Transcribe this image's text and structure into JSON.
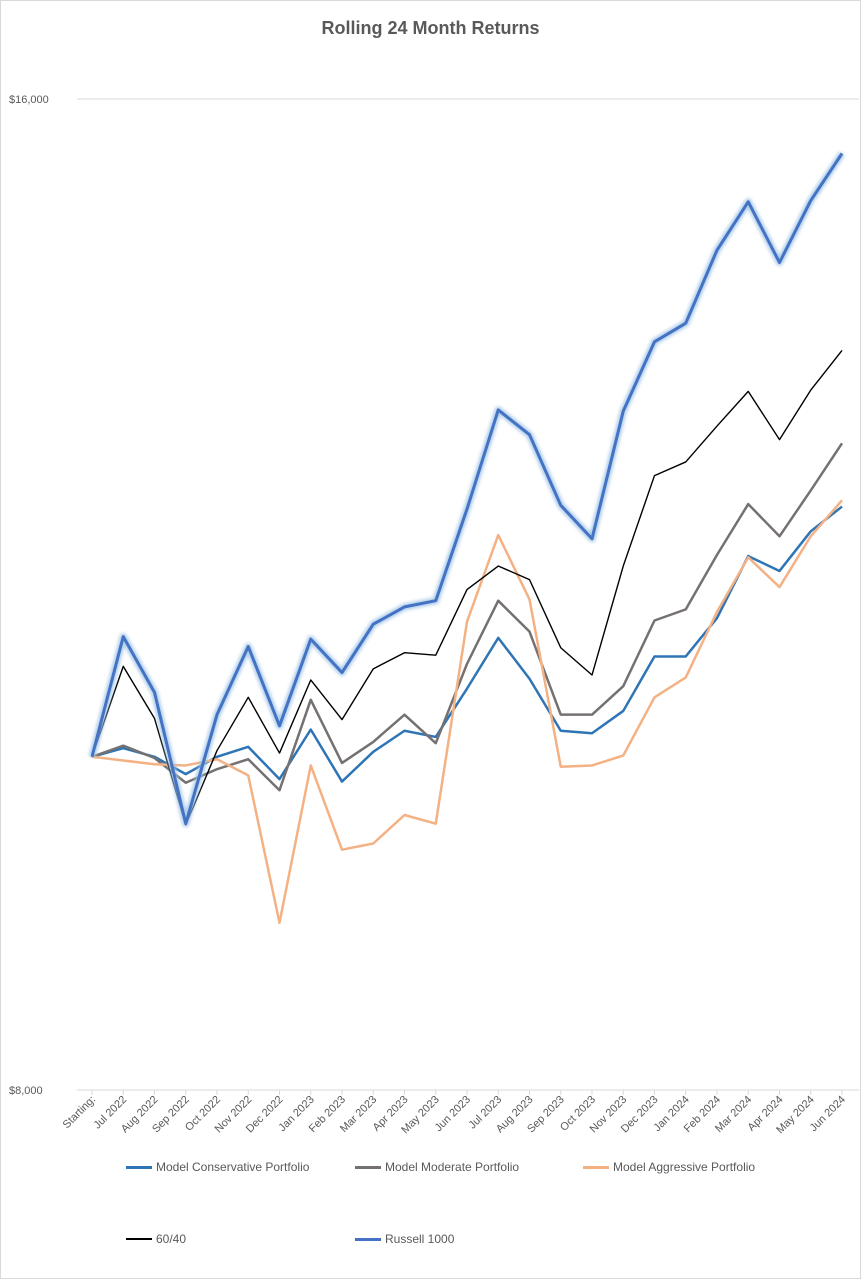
{
  "chart_data": {
    "type": "line",
    "title": "Rolling 24 Month Returns",
    "categories": [
      "Starting:",
      "Jul 2022",
      "Aug 2022",
      "Sep 2022",
      "Oct 2022",
      "Nov 2022",
      "Dec 2022",
      "Jan 2023",
      "Feb 2023",
      "Mar 2023",
      "Apr 2023",
      "May 2023",
      "Jun 2023",
      "Jul 2023",
      "Aug 2023",
      "Sep 2023",
      "Oct 2023",
      "Nov 2023",
      "Dec 2023",
      "Jan 2024",
      "Feb 2024",
      "Mar 2024",
      "Apr 2024",
      "May 2024",
      "Jun 2024"
    ],
    "ylim": [
      8000,
      16000
    ],
    "y_ticks": [
      "$16,000",
      "$8,000"
    ],
    "y_tick_values": [
      16000,
      8000
    ],
    "grid": "horizontal line at top",
    "legend_position": "bottom",
    "series": [
      {
        "name": "Model Conservative Portfolio",
        "color": "#2e75b6",
        "values": [
          10690,
          10760,
          10690,
          10550,
          10690,
          10770,
          10510,
          10910,
          10490,
          10730,
          10900,
          10850,
          11240,
          11650,
          11320,
          10900,
          10880,
          11060,
          11500,
          11500,
          11810,
          12310,
          12190,
          12510,
          12710
        ]
      },
      {
        "name": "Model Moderate Portfolio",
        "color": "#767171",
        "values": [
          10690,
          10780,
          10680,
          10480,
          10590,
          10670,
          10420,
          11150,
          10640,
          10810,
          11030,
          10800,
          11440,
          11950,
          11700,
          11030,
          11030,
          11260,
          11790,
          11880,
          12320,
          12730,
          12470,
          12840,
          13220
        ]
      },
      {
        "name": "Model Aggressive Portfolio",
        "color": "#f4b183",
        "values": [
          10690,
          10660,
          10630,
          10620,
          10670,
          10540,
          9350,
          10620,
          9940,
          9990,
          10220,
          10150,
          11780,
          12480,
          11960,
          10610,
          10620,
          10700,
          11170,
          11330,
          11860,
          12300,
          12060,
          12470,
          12760
        ]
      },
      {
        "name": "60/40",
        "color": "#000000",
        "values": [
          10690,
          11420,
          11000,
          10140,
          10740,
          11170,
          10720,
          11310,
          10990,
          11400,
          11530,
          11510,
          12040,
          12230,
          12120,
          11570,
          11350,
          12230,
          12960,
          13070,
          13360,
          13640,
          13250,
          13650,
          13970
        ]
      },
      {
        "name": "Russell 1000",
        "color": "#4472c4",
        "values": [
          10690,
          11660,
          11210,
          10150,
          11030,
          11580,
          10940,
          11640,
          11370,
          11760,
          11900,
          11950,
          12690,
          13490,
          13290,
          12720,
          12450,
          13480,
          14040,
          14190,
          14780,
          15170,
          14680,
          15180,
          15560
        ]
      }
    ]
  }
}
